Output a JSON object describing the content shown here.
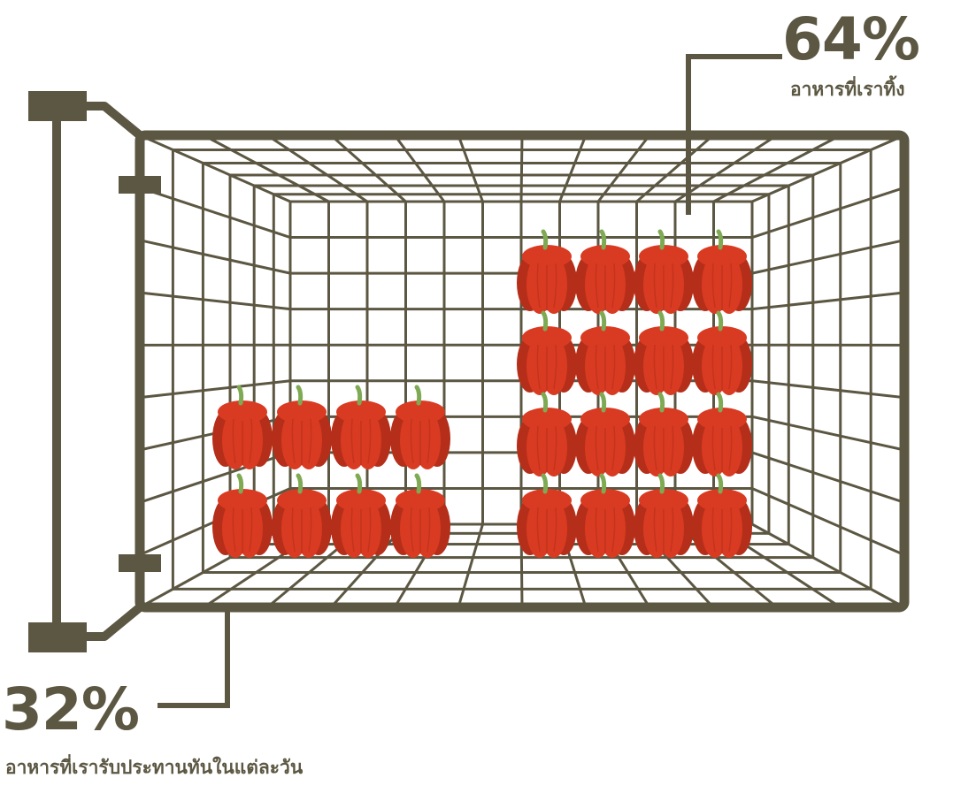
{
  "colors": {
    "ink": "#5c5742",
    "pepper": "#d93b22",
    "pepper_dark": "#b52e19",
    "stem": "#7faa54"
  },
  "stats": {
    "top": {
      "value": "64%",
      "caption": "อาหารที่เราทิ้ง"
    },
    "bottom": {
      "value": "32%",
      "caption": "อาหารที่เรารับประทานทันในแต่ละวัน"
    }
  },
  "pepper_groups": {
    "discarded": {
      "rows": 4,
      "cols": 4,
      "count": 16
    },
    "eaten": {
      "rows": 2,
      "cols": 4,
      "count": 8
    }
  },
  "icons": {
    "basket": "shopping-basket-icon",
    "pepper": "bell-pepper-icon"
  }
}
